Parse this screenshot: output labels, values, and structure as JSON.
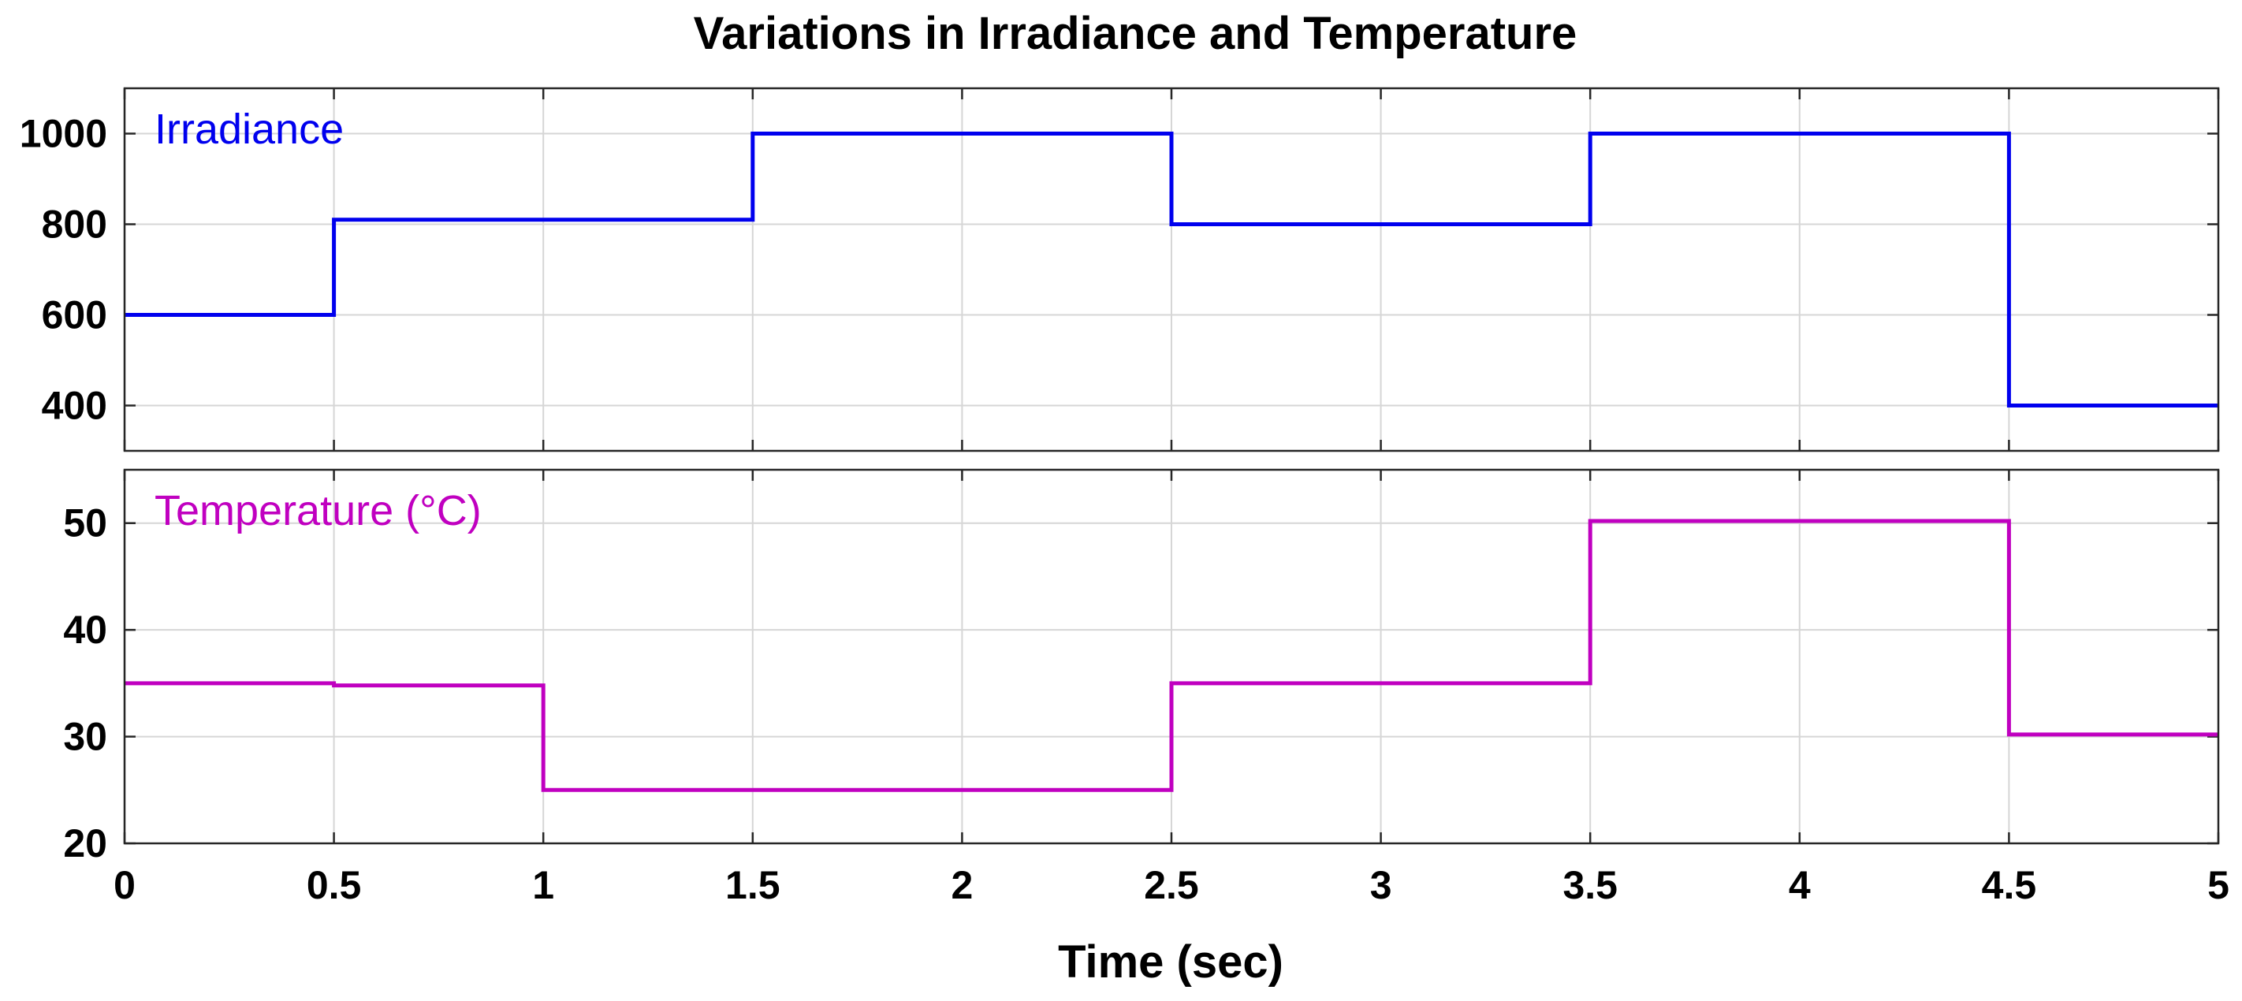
{
  "chart_data": {
    "type": "line",
    "title": "Variations in Irradiance and Temperature",
    "xlabel": "Time (sec)",
    "xlim": [
      0,
      5
    ],
    "xticks": [
      0,
      0.5,
      1,
      1.5,
      2,
      2.5,
      3,
      3.5,
      4,
      4.5,
      5
    ],
    "xtick_labels": [
      "0",
      "0.5",
      "1",
      "1.5",
      "2",
      "2.5",
      "3",
      "3.5",
      "4",
      "4.5",
      "5"
    ],
    "grid": true,
    "panels": [
      {
        "name": "irradiance",
        "legend_label": "Irradiance",
        "legend_position": "top-left",
        "color": "#0000ee",
        "ylim": [
          300,
          1100
        ],
        "yticks": [
          400,
          600,
          800,
          1000
        ],
        "ytick_labels": [
          "400",
          "600",
          "800",
          "1000"
        ],
        "step": "post",
        "x": [
          0,
          0.5,
          1.5,
          2.5,
          3.5,
          4.5,
          5
        ],
        "y": [
          600,
          810,
          1000,
          800,
          1000,
          400,
          400
        ]
      },
      {
        "name": "temperature",
        "legend_label": "Temperature (°C)",
        "legend_position": "top-left",
        "color": "#c000c0",
        "ylim": [
          20,
          55
        ],
        "yticks": [
          20,
          30,
          40,
          50
        ],
        "ytick_labels": [
          "20",
          "30",
          "40",
          "50"
        ],
        "step": "post",
        "x": [
          0,
          0.5,
          1,
          2.5,
          3.5,
          4.5,
          5
        ],
        "y": [
          35,
          34.8,
          25,
          35,
          50.2,
          30.2,
          30.2
        ]
      }
    ]
  }
}
